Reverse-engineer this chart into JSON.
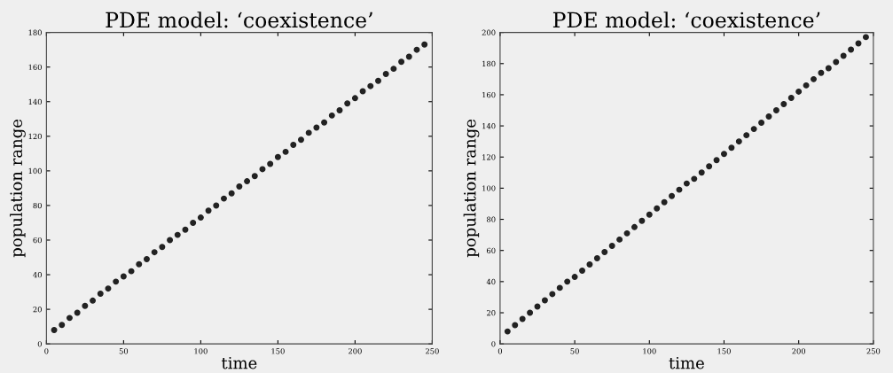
{
  "chart_data": [
    {
      "type": "scatter",
      "title": "PDE model: ‘coexistence’",
      "xlabel": "time",
      "ylabel": "population range",
      "x": [
        5,
        10,
        15,
        20,
        25,
        30,
        35,
        40,
        45,
        50,
        55,
        60,
        65,
        70,
        75,
        80,
        85,
        90,
        95,
        100,
        105,
        110,
        115,
        120,
        125,
        130,
        135,
        140,
        145,
        150,
        155,
        160,
        165,
        170,
        175,
        180,
        185,
        190,
        195,
        200,
        205,
        210,
        215,
        220,
        225,
        230,
        235,
        240,
        245
      ],
      "series": [
        {
          "color": "#222222",
          "values": [
            8,
            11,
            15,
            18,
            22,
            25,
            29,
            32,
            36,
            39,
            42,
            46,
            49,
            53,
            56,
            60,
            63,
            66,
            70,
            73,
            77,
            80,
            84,
            87,
            91,
            94,
            97,
            101,
            104,
            108,
            111,
            115,
            118,
            122,
            125,
            128,
            132,
            135,
            139,
            142,
            146,
            149,
            152,
            156,
            159,
            163,
            166,
            170,
            173
          ]
        }
      ],
      "xlim": [
        0,
        250
      ],
      "xticks": [
        0,
        50,
        100,
        150,
        200,
        250
      ],
      "ylim": [
        0,
        180
      ],
      "yticks": [
        0,
        20,
        40,
        60,
        80,
        100,
        120,
        140,
        160,
        180
      ],
      "marker": "circle",
      "grid": false
    },
    {
      "type": "scatter",
      "title": "PDE model: ‘coexistence’",
      "xlabel": "time",
      "ylabel": "population range",
      "x": [
        5,
        10,
        15,
        20,
        25,
        30,
        35,
        40,
        45,
        50,
        55,
        60,
        65,
        70,
        75,
        80,
        85,
        90,
        95,
        100,
        105,
        110,
        115,
        120,
        125,
        130,
        135,
        140,
        145,
        150,
        155,
        160,
        165,
        170,
        175,
        180,
        185,
        190,
        195,
        200,
        205,
        210,
        215,
        220,
        225,
        230,
        235,
        240,
        245
      ],
      "series": [
        {
          "color": "#222222",
          "values": [
            8,
            12,
            16,
            20,
            24,
            28,
            32,
            36,
            40,
            43,
            47,
            51,
            55,
            59,
            63,
            67,
            71,
            75,
            79,
            83,
            87,
            91,
            95,
            99,
            103,
            106,
            110,
            114,
            118,
            122,
            126,
            130,
            134,
            138,
            142,
            146,
            150,
            154,
            158,
            162,
            166,
            170,
            174,
            177,
            181,
            185,
            189,
            193,
            197
          ]
        }
      ],
      "xlim": [
        0,
        250
      ],
      "xticks": [
        0,
        50,
        100,
        150,
        200,
        250
      ],
      "ylim": [
        0,
        200
      ],
      "yticks": [
        0,
        20,
        40,
        60,
        80,
        100,
        120,
        140,
        160,
        180,
        200
      ],
      "marker": "circle",
      "grid": false
    }
  ]
}
